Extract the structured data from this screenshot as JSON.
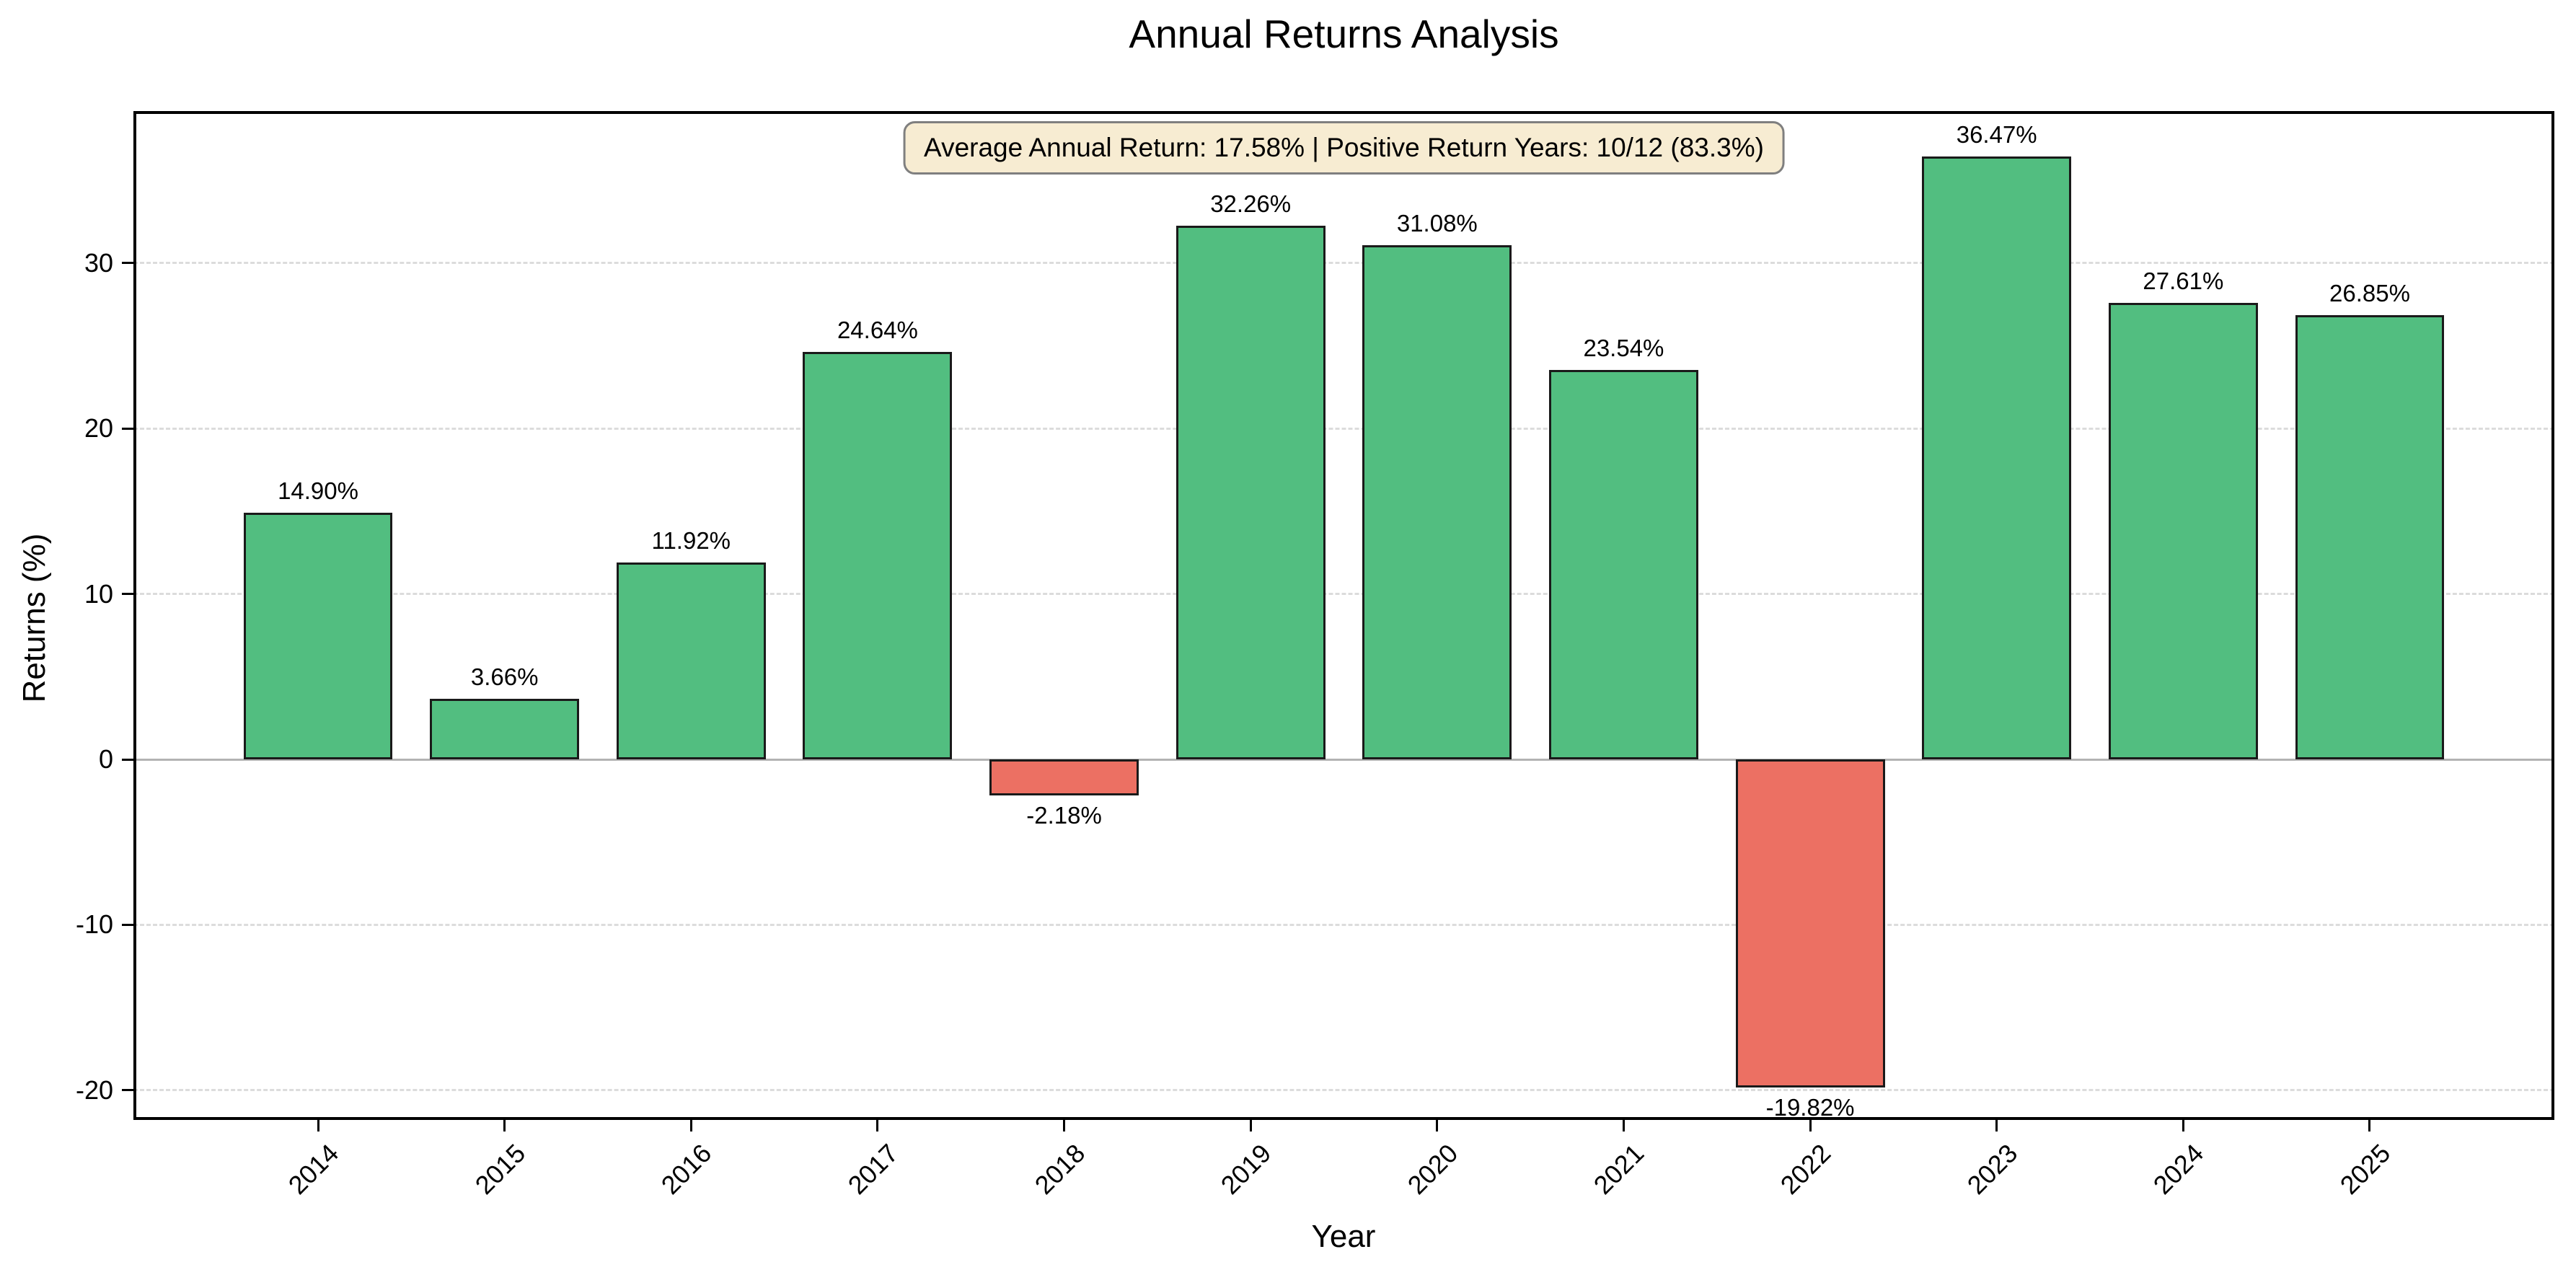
{
  "chart_data": {
    "type": "bar",
    "title": "Annual Returns Analysis",
    "xlabel": "Year",
    "ylabel": "Returns (%)",
    "categories": [
      "2014",
      "2015",
      "2016",
      "2017",
      "2018",
      "2019",
      "2020",
      "2021",
      "2022",
      "2023",
      "2024",
      "2025"
    ],
    "values": [
      14.9,
      3.66,
      11.92,
      24.64,
      -2.18,
      32.26,
      31.08,
      23.54,
      -19.82,
      36.47,
      27.61,
      26.85
    ],
    "bar_labels": [
      "14.90%",
      "3.66%",
      "11.92%",
      "24.64%",
      "-2.18%",
      "32.26%",
      "31.08%",
      "23.54%",
      "-19.82%",
      "36.47%",
      "27.61%",
      "26.85%"
    ],
    "annotation": "Average Annual Return: 17.58% | Positive Return Years: 10/12 (83.3%)",
    "yticks": [
      -20,
      -10,
      0,
      10,
      20,
      30
    ],
    "ytick_labels": [
      "-20",
      "-10",
      "0",
      "10",
      "20",
      "30"
    ],
    "ylim": [
      -21.8,
      39.2
    ],
    "grid": "horizontal-dashed",
    "legend": "none",
    "colors": {
      "positive_bar": "#52be80",
      "negative_bar": "#ec7063",
      "bar_edge": "#1a1a1a",
      "grid_line": "#dcdcdc",
      "zero_line": "#b3b3b3",
      "spine": "#000000",
      "annotation_bg": "#f7ecd2",
      "annotation_border": "#7f7f7f"
    }
  }
}
